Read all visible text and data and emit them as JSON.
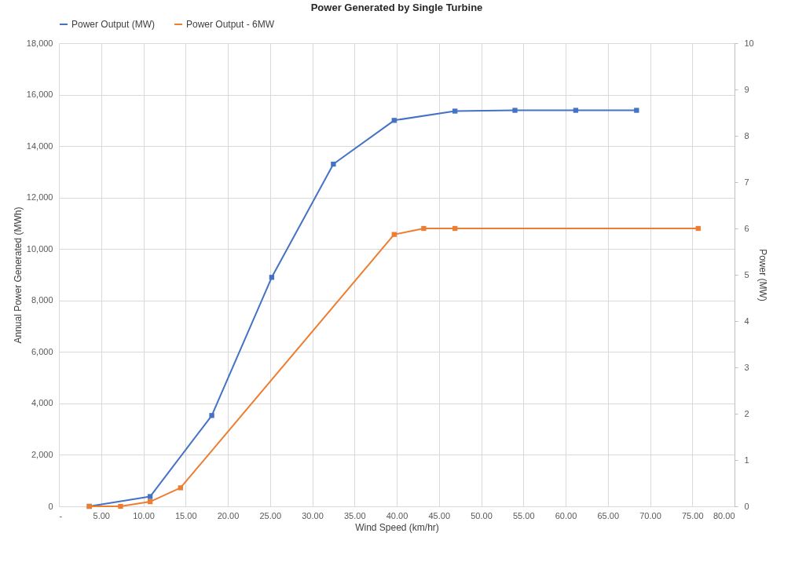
{
  "chart_data": {
    "type": "line",
    "title": "Power Generated by Single Turbine",
    "xlabel": "Wind Speed (km/hr)",
    "ylabel": "Annual Power Generated (MWh)",
    "y2label": "Power (MW)",
    "series": [
      {
        "name": "Power Output (MW)",
        "color": "#4472c4",
        "x": [
          3.6,
          10.8,
          18.1,
          25.2,
          32.5,
          39.7,
          46.9,
          54.0,
          61.2,
          68.4
        ],
        "values": [
          0,
          380,
          3530,
          8900,
          13300,
          15000,
          15360,
          15390,
          15390,
          15390
        ]
      },
      {
        "name": "Power Output - 6MW",
        "color": "#ed7d31",
        "axis": "y2",
        "x": [
          3.6,
          7.3,
          10.8,
          14.4,
          39.7,
          43.2,
          46.9,
          75.7
        ],
        "values": [
          0,
          0,
          0.1,
          0.4,
          5.87,
          6.0,
          6.0,
          6.0
        ]
      }
    ],
    "xlim": [
      0,
      80
    ],
    "xticks": [
      {
        "value": 0,
        "label": "-"
      },
      {
        "value": 5,
        "label": "5.00"
      },
      {
        "value": 10,
        "label": "10.00"
      },
      {
        "value": 15,
        "label": "15.00"
      },
      {
        "value": 20,
        "label": "20.00"
      },
      {
        "value": 25,
        "label": "25.00"
      },
      {
        "value": 30,
        "label": "30.00"
      },
      {
        "value": 35,
        "label": "35.00"
      },
      {
        "value": 40,
        "label": "40.00"
      },
      {
        "value": 45,
        "label": "45.00"
      },
      {
        "value": 50,
        "label": "50.00"
      },
      {
        "value": 55,
        "label": "55.00"
      },
      {
        "value": 60,
        "label": "60.00"
      },
      {
        "value": 65,
        "label": "65.00"
      },
      {
        "value": 70,
        "label": "70.00"
      },
      {
        "value": 75,
        "label": "75.00"
      },
      {
        "value": 80,
        "label": "80.00"
      }
    ],
    "ylim": [
      0,
      18000
    ],
    "yticks": [
      0,
      {
        "value": 2000,
        "label": "2,000"
      },
      {
        "value": 4000,
        "label": "4,000"
      },
      {
        "value": 6000,
        "label": "6,000"
      },
      {
        "value": 8000,
        "label": "8,000"
      },
      {
        "value": 10000,
        "label": "10,000"
      },
      {
        "value": 12000,
        "label": "12,000"
      },
      {
        "value": 14000,
        "label": "14,000"
      },
      {
        "value": 16000,
        "label": "16,000"
      },
      {
        "value": 18000,
        "label": "18,000"
      }
    ],
    "y2lim": [
      0,
      10
    ],
    "y2ticks": [
      0,
      1,
      2,
      3,
      4,
      5,
      6,
      7,
      8,
      9,
      10
    ],
    "grid": true,
    "legend": "top",
    "marker": "square",
    "line_style": "solid"
  }
}
